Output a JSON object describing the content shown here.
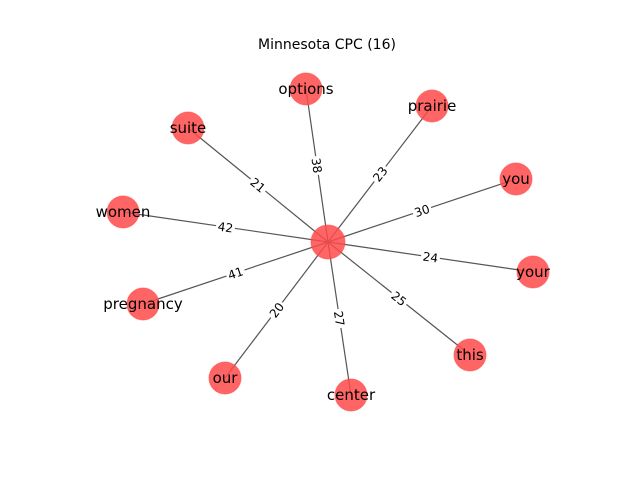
{
  "title": "Minnesota CPC (16)",
  "colors": {
    "node": "#ff4a4a",
    "edge": "#555555"
  },
  "graph": {
    "center": {
      "label": ""
    },
    "nodes": [
      {
        "label": "options",
        "weight": "38"
      },
      {
        "label": "prairie",
        "weight": "23"
      },
      {
        "label": "you",
        "weight": "30"
      },
      {
        "label": "your",
        "weight": "24"
      },
      {
        "label": "this",
        "weight": "25"
      },
      {
        "label": "center",
        "weight": "27"
      },
      {
        "label": "our",
        "weight": "20"
      },
      {
        "label": "pregnancy",
        "weight": "41"
      },
      {
        "label": "women",
        "weight": "42"
      },
      {
        "label": "suite",
        "weight": "21"
      }
    ]
  }
}
